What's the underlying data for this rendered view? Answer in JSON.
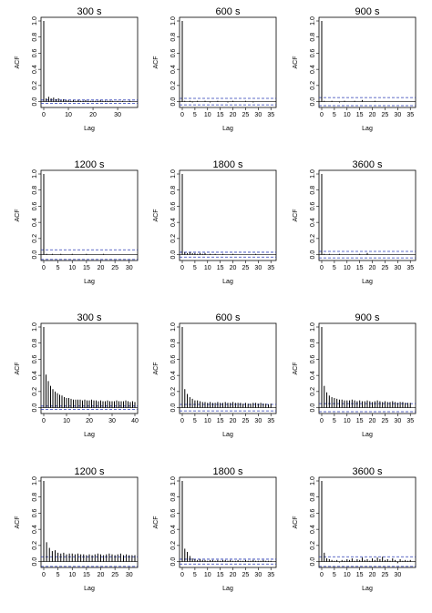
{
  "chart_data": [
    {
      "type": "bar",
      "title": "300 s",
      "xlabel": "Lag",
      "ylabel": "ACF",
      "ylim": [
        -0.05,
        1.0
      ],
      "xlim": [
        0,
        37
      ],
      "x_ticks": [
        0,
        10,
        20,
        30
      ],
      "y_ticks": [
        0.0,
        0.2,
        0.4,
        0.6,
        0.8,
        1.0
      ],
      "confidence_bound": 0.02,
      "grid": false,
      "lags": [
        0,
        1,
        2,
        3,
        4,
        5,
        6,
        7,
        8,
        9,
        10,
        11,
        12,
        13,
        14,
        15,
        16,
        17,
        18,
        19,
        20,
        21,
        22,
        23,
        24,
        25,
        26,
        27,
        28,
        29,
        30,
        31,
        32,
        33,
        34,
        35,
        36
      ],
      "values": [
        1.0,
        0.04,
        0.06,
        0.04,
        0.05,
        0.03,
        0.04,
        0.02,
        0.03,
        0.02,
        0.02,
        0.01,
        0.02,
        0.01,
        0.02,
        0.01,
        0.01,
        0.02,
        0.01,
        0.01,
        0.01,
        0.01,
        0.01,
        0.02,
        0.01,
        0.01,
        0.01,
        0.01,
        0.01,
        0.0,
        0.01,
        0.0,
        0.01,
        0.0,
        0.0,
        0.01,
        0.0
      ]
    },
    {
      "type": "bar",
      "title": "600 s",
      "xlabel": "Lag",
      "ylabel": "ACF",
      "ylim": [
        -0.05,
        1.0
      ],
      "xlim": [
        0,
        36
      ],
      "x_ticks": [
        0,
        5,
        10,
        15,
        20,
        25,
        30,
        35
      ],
      "y_ticks": [
        0.0,
        0.2,
        0.4,
        0.6,
        0.8,
        1.0
      ],
      "confidence_bound": 0.04,
      "grid": false,
      "lags": [
        0,
        1,
        2,
        3,
        4,
        5,
        6,
        7,
        8,
        9,
        10,
        11,
        12,
        13,
        14,
        15,
        16,
        17,
        18,
        19,
        20,
        21,
        22,
        23,
        24,
        25,
        26,
        27,
        28,
        29,
        30,
        31,
        32,
        33,
        34,
        35
      ],
      "values": [
        1.0,
        0.01,
        0.0,
        0.01,
        -0.01,
        0.0,
        0.01,
        0.0,
        0.0,
        0.01,
        0.0,
        -0.01,
        0.0,
        0.0,
        0.01,
        0.0,
        0.0,
        0.0,
        -0.01,
        0.0,
        0.01,
        0.0,
        0.0,
        0.0,
        0.0,
        0.01,
        0.0,
        0.0,
        -0.01,
        0.0,
        0.0,
        0.0,
        0.0,
        0.0,
        0.0,
        0.0
      ]
    },
    {
      "type": "bar",
      "title": "900 s",
      "xlabel": "Lag",
      "ylabel": "ACF",
      "ylim": [
        -0.05,
        1.0
      ],
      "xlim": [
        0,
        36
      ],
      "x_ticks": [
        0,
        5,
        10,
        15,
        20,
        25,
        30,
        35
      ],
      "y_ticks": [
        0.0,
        0.2,
        0.4,
        0.6,
        0.8,
        1.0
      ],
      "confidence_bound": 0.05,
      "grid": false,
      "lags": [
        0,
        1,
        2,
        3,
        4,
        5,
        6,
        7,
        8,
        9,
        10,
        11,
        12,
        13,
        14,
        15,
        16,
        17,
        18,
        19,
        20,
        21,
        22,
        23,
        24,
        25,
        26,
        27,
        28,
        29,
        30,
        31,
        32,
        33,
        34,
        35
      ],
      "values": [
        1.0,
        0.01,
        0.0,
        0.0,
        0.01,
        0.0,
        0.0,
        -0.01,
        0.0,
        0.01,
        0.0,
        0.0,
        0.0,
        0.01,
        0.0,
        0.0,
        0.02,
        0.0,
        0.0,
        0.0,
        0.0,
        0.01,
        0.0,
        0.0,
        0.0,
        0.0,
        0.0,
        0.0,
        0.0,
        0.0,
        0.0,
        0.0,
        0.0,
        0.0,
        0.0,
        0.0
      ]
    },
    {
      "type": "bar",
      "title": "1200 s",
      "xlabel": "Lag",
      "ylabel": "ACF",
      "ylim": [
        -0.05,
        1.0
      ],
      "xlim": [
        0,
        32
      ],
      "x_ticks": [
        0,
        5,
        10,
        15,
        20,
        25,
        30
      ],
      "y_ticks": [
        0.0,
        0.2,
        0.4,
        0.6,
        0.8,
        1.0
      ],
      "confidence_bound": 0.06,
      "grid": false,
      "lags": [
        0,
        1,
        2,
        3,
        4,
        5,
        6,
        7,
        8,
        9,
        10,
        11,
        12,
        13,
        14,
        15,
        16,
        17,
        18,
        19,
        20,
        21,
        22,
        23,
        24,
        25,
        26,
        27,
        28,
        29,
        30,
        31,
        32
      ],
      "values": [
        1.0,
        0.01,
        0.0,
        0.01,
        0.0,
        0.0,
        0.01,
        0.0,
        0.0,
        0.0,
        0.01,
        0.0,
        0.0,
        0.0,
        0.0,
        0.01,
        0.0,
        0.0,
        0.0,
        0.0,
        0.0,
        0.01,
        0.0,
        0.0,
        0.0,
        0.0,
        0.0,
        0.0,
        0.0,
        0.0,
        0.0,
        0.0,
        0.0
      ]
    },
    {
      "type": "bar",
      "title": "1800 s",
      "xlabel": "Lag",
      "ylabel": "ACF",
      "ylim": [
        -0.05,
        1.0
      ],
      "xlim": [
        0,
        36
      ],
      "x_ticks": [
        0,
        5,
        10,
        15,
        20,
        25,
        30,
        35
      ],
      "y_ticks": [
        0.0,
        0.2,
        0.4,
        0.6,
        0.8,
        1.0
      ],
      "confidence_bound": 0.03,
      "grid": false,
      "lags": [
        0,
        1,
        2,
        3,
        4,
        5,
        6,
        7,
        8,
        9,
        10,
        11,
        12,
        13,
        14,
        15,
        16,
        17,
        18,
        19,
        20,
        21,
        22,
        23,
        24,
        25,
        26,
        27,
        28,
        29,
        30,
        31,
        32,
        33,
        34,
        35
      ],
      "values": [
        1.0,
        0.03,
        0.02,
        0.03,
        0.02,
        0.02,
        0.01,
        0.02,
        0.01,
        0.02,
        0.0,
        0.01,
        0.0,
        0.01,
        0.0,
        0.0,
        0.01,
        0.0,
        0.0,
        0.0,
        0.01,
        0.0,
        0.0,
        0.0,
        0.0,
        0.0,
        0.0,
        0.0,
        0.0,
        0.01,
        0.0,
        0.0,
        0.0,
        0.0,
        0.0,
        0.0
      ]
    },
    {
      "type": "bar",
      "title": "3600 s",
      "xlabel": "Lag",
      "ylabel": "ACF",
      "ylim": [
        -0.05,
        1.0
      ],
      "xlim": [
        0,
        36
      ],
      "x_ticks": [
        0,
        5,
        10,
        15,
        20,
        25,
        30,
        35
      ],
      "y_ticks": [
        0.0,
        0.2,
        0.4,
        0.6,
        0.8,
        1.0
      ],
      "confidence_bound": 0.04,
      "grid": false,
      "lags": [
        0,
        1,
        2,
        3,
        4,
        5,
        6,
        7,
        8,
        9,
        10,
        11,
        12,
        13,
        14,
        15,
        16,
        17,
        18,
        19,
        20,
        21,
        22,
        23,
        24,
        25,
        26,
        27,
        28,
        29,
        30,
        31,
        32,
        33,
        34,
        35
      ],
      "values": [
        1.0,
        0.01,
        0.0,
        0.01,
        0.0,
        0.0,
        0.0,
        0.01,
        0.0,
        0.0,
        0.0,
        0.0,
        0.0,
        0.0,
        0.0,
        0.01,
        0.0,
        0.0,
        0.02,
        0.0,
        0.0,
        0.0,
        0.0,
        0.0,
        0.0,
        0.0,
        0.0,
        0.0,
        0.0,
        0.0,
        0.0,
        0.0,
        0.0,
        0.0,
        0.0,
        0.0
      ]
    },
    {
      "type": "bar",
      "title": "300 s",
      "xlabel": "Lag",
      "ylabel": "ACF",
      "ylim": [
        -0.05,
        1.0
      ],
      "xlim": [
        0,
        40
      ],
      "x_ticks": [
        0,
        10,
        20,
        30,
        40
      ],
      "y_ticks": [
        0.0,
        0.2,
        0.4,
        0.6,
        0.8,
        1.0
      ],
      "confidence_bound": 0.02,
      "grid": false,
      "lags": [
        0,
        1,
        2,
        3,
        4,
        5,
        6,
        7,
        8,
        9,
        10,
        11,
        12,
        13,
        14,
        15,
        16,
        17,
        18,
        19,
        20,
        21,
        22,
        23,
        24,
        25,
        26,
        27,
        28,
        29,
        30,
        31,
        32,
        33,
        34,
        35,
        36,
        37,
        38,
        39,
        40
      ],
      "values": [
        1.0,
        0.41,
        0.33,
        0.27,
        0.23,
        0.2,
        0.18,
        0.16,
        0.15,
        0.13,
        0.12,
        0.12,
        0.11,
        0.1,
        0.1,
        0.1,
        0.1,
        0.09,
        0.1,
        0.09,
        0.09,
        0.1,
        0.09,
        0.09,
        0.08,
        0.09,
        0.08,
        0.08,
        0.09,
        0.08,
        0.08,
        0.08,
        0.09,
        0.08,
        0.08,
        0.08,
        0.09,
        0.08,
        0.07,
        0.08,
        0.07
      ]
    },
    {
      "type": "bar",
      "title": "600 s",
      "xlabel": "Lag",
      "ylabel": "ACF",
      "ylim": [
        -0.05,
        1.0
      ],
      "xlim": [
        0,
        36
      ],
      "x_ticks": [
        0,
        5,
        10,
        15,
        20,
        25,
        30,
        35
      ],
      "y_ticks": [
        0.0,
        0.2,
        0.4,
        0.6,
        0.8,
        1.0
      ],
      "confidence_bound": 0.04,
      "grid": false,
      "lags": [
        0,
        1,
        2,
        3,
        4,
        5,
        6,
        7,
        8,
        9,
        10,
        11,
        12,
        13,
        14,
        15,
        16,
        17,
        18,
        19,
        20,
        21,
        22,
        23,
        24,
        25,
        26,
        27,
        28,
        29,
        30,
        31,
        32,
        33,
        34,
        35
      ],
      "values": [
        1.0,
        0.23,
        0.17,
        0.13,
        0.11,
        0.09,
        0.09,
        0.08,
        0.07,
        0.07,
        0.06,
        0.07,
        0.06,
        0.06,
        0.07,
        0.06,
        0.06,
        0.07,
        0.06,
        0.06,
        0.07,
        0.06,
        0.06,
        0.06,
        0.05,
        0.06,
        0.05,
        0.05,
        0.06,
        0.06,
        0.05,
        0.06,
        0.05,
        0.05,
        0.04,
        0.05
      ]
    },
    {
      "type": "bar",
      "title": "900 s",
      "xlabel": "Lag",
      "ylabel": "ACF",
      "ylim": [
        -0.05,
        1.0
      ],
      "xlim": [
        0,
        36
      ],
      "x_ticks": [
        0,
        5,
        10,
        15,
        20,
        25,
        30,
        35
      ],
      "y_ticks": [
        0.0,
        0.2,
        0.4,
        0.6,
        0.8,
        1.0
      ],
      "confidence_bound": 0.05,
      "grid": false,
      "lags": [
        0,
        1,
        2,
        3,
        4,
        5,
        6,
        7,
        8,
        9,
        10,
        11,
        12,
        13,
        14,
        15,
        16,
        17,
        18,
        19,
        20,
        21,
        22,
        23,
        24,
        25,
        26,
        27,
        28,
        29,
        30,
        31,
        32,
        33,
        34,
        35
      ],
      "values": [
        1.0,
        0.27,
        0.19,
        0.15,
        0.13,
        0.12,
        0.11,
        0.1,
        0.1,
        0.09,
        0.09,
        0.09,
        0.1,
        0.09,
        0.08,
        0.09,
        0.08,
        0.08,
        0.09,
        0.08,
        0.07,
        0.08,
        0.09,
        0.08,
        0.07,
        0.08,
        0.07,
        0.07,
        0.08,
        0.07,
        0.06,
        0.07,
        0.07,
        0.06,
        0.06,
        0.06
      ]
    },
    {
      "type": "bar",
      "title": "1200 s",
      "xlabel": "Lag",
      "ylabel": "ACF",
      "ylim": [
        -0.05,
        1.0
      ],
      "xlim": [
        0,
        32
      ],
      "x_ticks": [
        0,
        5,
        10,
        15,
        20,
        25,
        30
      ],
      "y_ticks": [
        0.0,
        0.2,
        0.4,
        0.6,
        0.8,
        1.0
      ],
      "confidence_bound": 0.06,
      "grid": false,
      "lags": [
        0,
        1,
        2,
        3,
        4,
        5,
        6,
        7,
        8,
        9,
        10,
        11,
        12,
        13,
        14,
        15,
        16,
        17,
        18,
        19,
        20,
        21,
        22,
        23,
        24,
        25,
        26,
        27,
        28,
        29,
        30,
        31,
        32
      ],
      "values": [
        1.0,
        0.24,
        0.17,
        0.13,
        0.14,
        0.11,
        0.1,
        0.11,
        0.09,
        0.1,
        0.1,
        0.09,
        0.1,
        0.09,
        0.09,
        0.08,
        0.09,
        0.08,
        0.09,
        0.1,
        0.09,
        0.08,
        0.09,
        0.1,
        0.09,
        0.08,
        0.09,
        0.1,
        0.08,
        0.09,
        0.08,
        0.08,
        0.08
      ]
    },
    {
      "type": "bar",
      "title": "1800 s",
      "xlabel": "Lag",
      "ylabel": "ACF",
      "ylim": [
        -0.05,
        1.0
      ],
      "xlim": [
        0,
        36
      ],
      "x_ticks": [
        0,
        5,
        10,
        15,
        20,
        25,
        30,
        35
      ],
      "y_ticks": [
        0.0,
        0.2,
        0.4,
        0.6,
        0.8,
        1.0
      ],
      "confidence_bound": 0.03,
      "grid": false,
      "lags": [
        0,
        1,
        2,
        3,
        4,
        5,
        6,
        7,
        8,
        9,
        10,
        11,
        12,
        13,
        14,
        15,
        16,
        17,
        18,
        19,
        20,
        21,
        22,
        23,
        24,
        25,
        26,
        27,
        28,
        29,
        30,
        31,
        32,
        33,
        34,
        35
      ],
      "values": [
        1.0,
        0.16,
        0.12,
        0.07,
        0.04,
        0.03,
        0.02,
        0.03,
        0.02,
        0.02,
        0.01,
        0.02,
        0.02,
        0.01,
        0.02,
        0.01,
        0.02,
        0.02,
        0.01,
        0.02,
        0.01,
        0.01,
        0.02,
        0.01,
        0.01,
        0.02,
        0.01,
        0.01,
        0.02,
        0.01,
        0.01,
        0.01,
        0.02,
        0.01,
        0.01,
        0.01
      ]
    },
    {
      "type": "bar",
      "title": "3600 s",
      "xlabel": "Lag",
      "ylabel": "ACF",
      "ylim": [
        -0.05,
        1.0
      ],
      "xlim": [
        0,
        36
      ],
      "x_ticks": [
        0,
        5,
        10,
        15,
        20,
        25,
        30
      ],
      "y_ticks": [
        0.0,
        0.2,
        0.4,
        0.6,
        0.8,
        1.0
      ],
      "confidence_bound": 0.06,
      "grid": false,
      "lags": [
        0,
        1,
        2,
        3,
        4,
        5,
        6,
        7,
        8,
        9,
        10,
        11,
        12,
        13,
        14,
        15,
        16,
        17,
        18,
        19,
        20,
        21,
        22,
        23,
        24,
        25,
        26,
        27,
        28,
        29,
        30,
        31,
        32,
        33,
        34,
        35
      ],
      "values": [
        1.0,
        0.11,
        0.04,
        0.03,
        0.02,
        0.01,
        0.02,
        -0.01,
        0.02,
        0.01,
        0.03,
        0.02,
        0.04,
        0.01,
        0.03,
        0.02,
        0.05,
        0.02,
        0.03,
        0.01,
        0.04,
        0.02,
        0.05,
        0.03,
        0.06,
        0.02,
        0.03,
        0.01,
        0.04,
        0.02,
        -0.02,
        0.03,
        0.01,
        0.02,
        0.01,
        0.02
      ]
    }
  ],
  "colors": {
    "bars": "#000000",
    "confidence_line": "#2a3bb5",
    "zero_line": "#000000",
    "axis": "#000000"
  }
}
